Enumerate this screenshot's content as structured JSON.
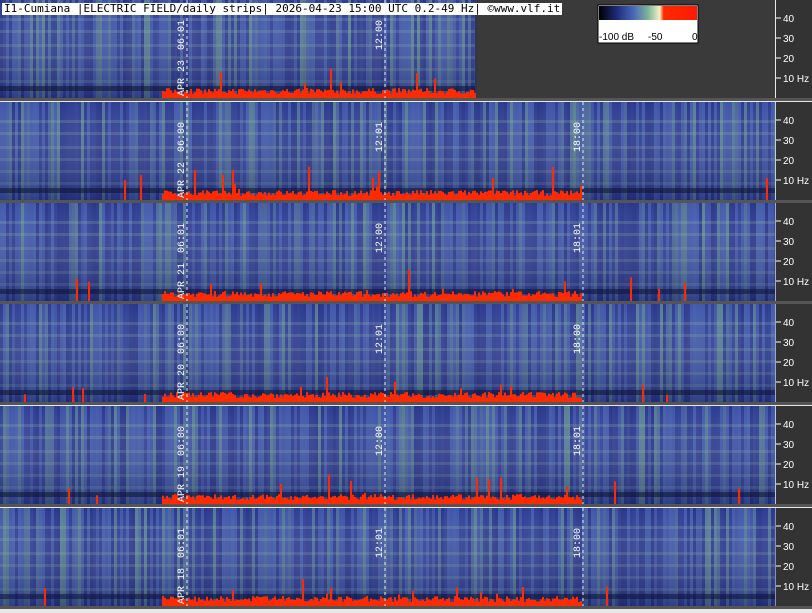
{
  "header": {
    "title": "I1-Cumiana |ELECTRIC FIELD/daily strips| 2026-04-23 15:00 UTC 0.2-49 Hz| ©www.vlf.it"
  },
  "colorbar": {
    "labels": [
      "-100 dB",
      "-50",
      "0"
    ]
  },
  "colors": {
    "background": "#3a4aa3",
    "low": "#1e2a78",
    "mid": "#6fa58c",
    "high": "#e8ecd0",
    "peak": "#ff2a00",
    "separator": "#555555",
    "empty": "#3a3a3a"
  },
  "chart_data": {
    "type": "heatmap",
    "frequency_ticks": [
      "40",
      "30",
      "20",
      "10 Hz"
    ],
    "ylim": [
      0.2,
      49
    ],
    "time_marks": [
      "06:00",
      "12:00",
      "18:00"
    ],
    "strips": [
      {
        "date": "APR 23",
        "hour_labels": [
          "06:01",
          "12:00"
        ],
        "data_until_hour": 15
      },
      {
        "date": "APR 22",
        "hour_labels": [
          "06:00",
          "12:01",
          "18:00"
        ],
        "data_until_hour": 24
      },
      {
        "date": "APR 21",
        "hour_labels": [
          "06:01",
          "12:00",
          "18:01"
        ],
        "data_until_hour": 24
      },
      {
        "date": "APR 20",
        "hour_labels": [
          "06:00",
          "12:01",
          "18:00"
        ],
        "data_until_hour": 24
      },
      {
        "date": "APR 19",
        "hour_labels": [
          "06:00",
          "12:00",
          "18:01"
        ],
        "data_until_hour": 24
      },
      {
        "date": "APR 18",
        "hour_labels": [
          "06:01",
          "12:01",
          "18:00"
        ],
        "data_until_hour": 24
      }
    ]
  }
}
